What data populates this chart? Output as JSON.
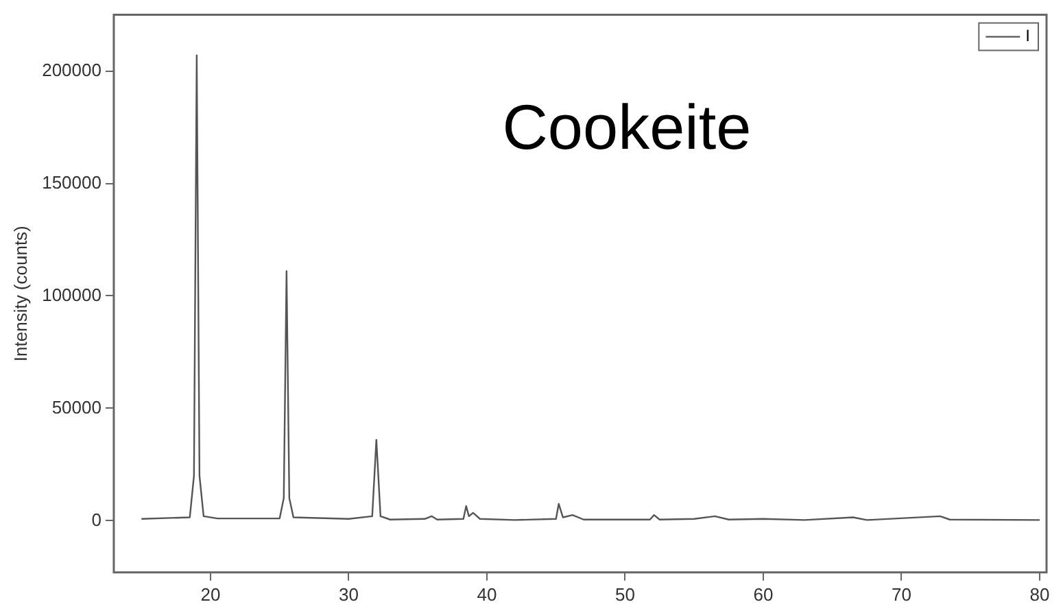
{
  "chart_data": {
    "type": "line",
    "ylabel": "Intensity (counts)",
    "annotations": [
      "Cookeite"
    ],
    "x": [
      15,
      18.5,
      18.8,
      19.0,
      19.2,
      19.5,
      20.5,
      25.0,
      25.3,
      25.5,
      25.7,
      26.0,
      30,
      31.7,
      32.0,
      32.3,
      33,
      35.5,
      36.0,
      36.4,
      38.3,
      38.5,
      38.7,
      39.0,
      39.5,
      42,
      45.0,
      45.2,
      45.5,
      46.2,
      47,
      51.8,
      52.1,
      52.5,
      55,
      56.5,
      57.5,
      60,
      63,
      66.5,
      67.5,
      72.8,
      73.5,
      80
    ],
    "series": [
      {
        "name": "I",
        "color": "#555555",
        "values": [
          800,
          1500,
          20000,
          207000,
          20000,
          2000,
          1000,
          1000,
          10000,
          111000,
          10000,
          1500,
          800,
          2000,
          36000,
          2000,
          500,
          800,
          2000,
          500,
          800,
          6500,
          2000,
          3500,
          800,
          300,
          800,
          7500,
          1500,
          2500,
          500,
          500,
          2500,
          500,
          800,
          2000,
          500,
          800,
          300,
          1500,
          300,
          2000,
          500,
          300
        ]
      }
    ],
    "xlim": [
      13,
      80.5
    ],
    "xticks": [
      20,
      30,
      40,
      50,
      60,
      70,
      80
    ],
    "ylim": [
      -23000,
      225000
    ],
    "yticks": [
      0,
      50000,
      100000,
      150000,
      200000
    ],
    "grid": false,
    "legend": "top right",
    "marker": "none",
    "line_style": "solid"
  }
}
